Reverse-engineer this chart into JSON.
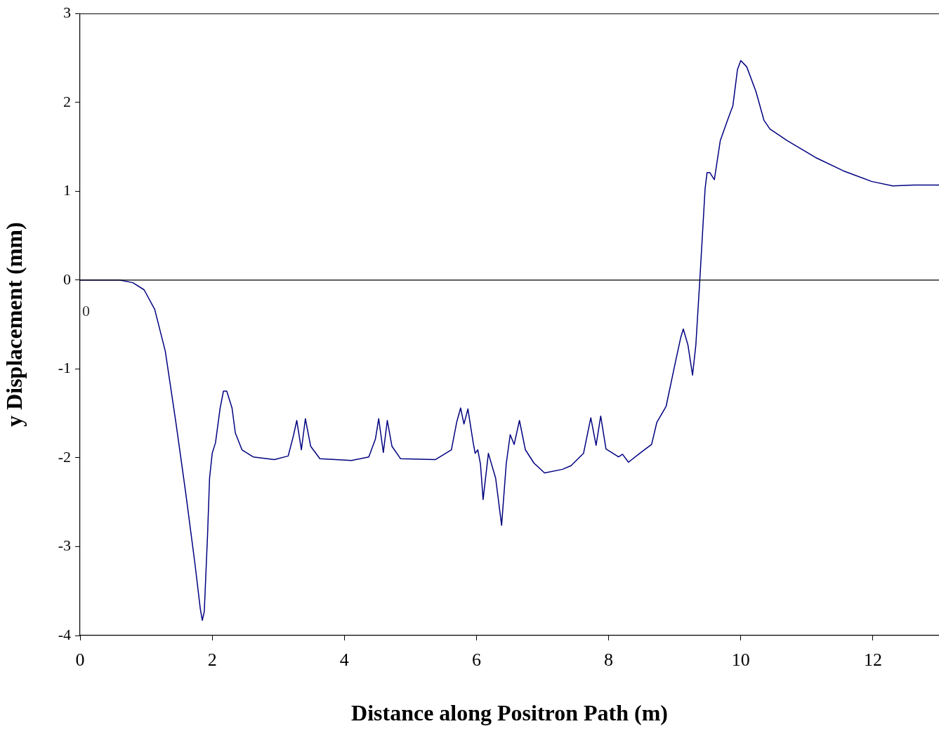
{
  "chart_data": {
    "type": "line",
    "xlabel": "Distance along Positron Path (m)",
    "ylabel": "y Displacement (mm)",
    "x": [
      0,
      0.6,
      0.8,
      0.97,
      1.13,
      1.29,
      1.45,
      1.6,
      1.74,
      1.82,
      1.85,
      1.88,
      1.93,
      1.96,
      2.0,
      2.05,
      2.12,
      2.17,
      2.22,
      2.3,
      2.35,
      2.45,
      2.62,
      2.94,
      3.15,
      3.23,
      3.28,
      3.35,
      3.41,
      3.49,
      3.63,
      4.11,
      4.37,
      4.47,
      4.52,
      4.59,
      4.65,
      4.72,
      4.85,
      5.38,
      5.62,
      5.7,
      5.76,
      5.81,
      5.87,
      5.95,
      5.98,
      6.02,
      6.06,
      6.1,
      6.18,
      6.29,
      6.38,
      6.45,
      6.51,
      6.57,
      6.65,
      6.74,
      6.87,
      7.03,
      7.3,
      7.43,
      7.62,
      7.73,
      7.81,
      7.88,
      7.96,
      8.15,
      8.21,
      8.3,
      8.47,
      8.65,
      8.73,
      8.87,
      9.0,
      9.09,
      9.13,
      9.2,
      9.27,
      9.32,
      9.38,
      9.46,
      9.49,
      9.53,
      9.6,
      9.69,
      9.8,
      9.88,
      9.95,
      10.0,
      10.09,
      10.23,
      10.35,
      10.44,
      10.7,
      11.13,
      11.55,
      11.98,
      12.3,
      12.62,
      13.0
    ],
    "series": [
      {
        "color": "#000080",
        "values": [
          0,
          0,
          -0.03,
          -0.11,
          -0.33,
          -0.8,
          -1.6,
          -2.4,
          -3.2,
          -3.7,
          -3.83,
          -3.73,
          -2.86,
          -2.23,
          -1.95,
          -1.83,
          -1.44,
          -1.25,
          -1.25,
          -1.44,
          -1.72,
          -1.91,
          -1.99,
          -2.02,
          -1.98,
          -1.75,
          -1.58,
          -1.91,
          -1.56,
          -1.87,
          -2.01,
          -2.03,
          -1.99,
          -1.79,
          -1.56,
          -1.94,
          -1.58,
          -1.87,
          -2.01,
          -2.02,
          -1.91,
          -1.6,
          -1.44,
          -1.62,
          -1.45,
          -1.83,
          -1.95,
          -1.91,
          -2.07,
          -2.47,
          -1.95,
          -2.23,
          -2.76,
          -2.07,
          -1.74,
          -1.85,
          -1.58,
          -1.91,
          -2.06,
          -2.17,
          -2.13,
          -2.09,
          -1.95,
          -1.55,
          -1.86,
          -1.53,
          -1.9,
          -1.99,
          -1.96,
          -2.05,
          -1.95,
          -1.85,
          -1.6,
          -1.42,
          -0.96,
          -0.65,
          -0.55,
          -0.73,
          -1.07,
          -0.73,
          0,
          1.03,
          1.21,
          1.21,
          1.13,
          1.57,
          1.8,
          1.96,
          2.37,
          2.47,
          2.4,
          2.12,
          1.8,
          1.7,
          1.57,
          1.38,
          1.23,
          1.11,
          1.06,
          1.07,
          1.07
        ]
      }
    ],
    "xlim": [
      0,
      13
    ],
    "xticks": [
      0,
      2,
      4,
      6,
      8,
      10,
      12
    ],
    "ylim": [
      -4,
      3
    ],
    "yticks": [
      -4,
      -3,
      -2,
      -1,
      0,
      1,
      2,
      3
    ],
    "ref_lines": [
      {
        "axis": "y",
        "value": 0,
        "color": "#000000"
      }
    ],
    "annotations": [
      "0"
    ],
    "grid": false,
    "legend": false,
    "marker": "none",
    "line_style": "solid"
  }
}
